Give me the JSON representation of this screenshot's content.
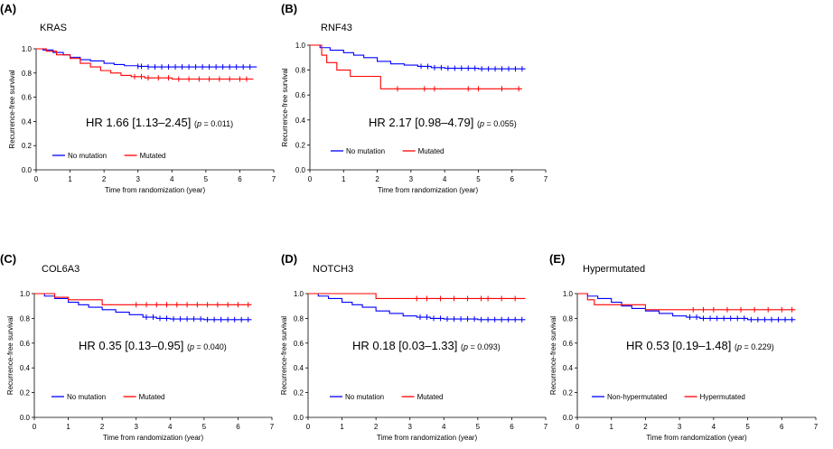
{
  "colors": {
    "series_a": "#0000ff",
    "series_b": "#ff0000"
  },
  "chart_data": [
    {
      "type": "line",
      "panel": "(A)",
      "title": "KRAS",
      "xlabel": "Time from randomization (year)",
      "ylabel": "Recurrence-free survival",
      "xlim": [
        0,
        7
      ],
      "ylim": [
        0,
        1.0
      ],
      "xticks": [
        "0",
        "1",
        "2",
        "3",
        "4",
        "5",
        "6",
        "7"
      ],
      "yticks": [
        "0.0",
        "0.2",
        "0.4",
        "0.6",
        "0.8",
        "1.0"
      ],
      "hr_text": "HR 1.66 [1.13–2.45]",
      "p_open": "(",
      "p_label": "p",
      "p_value": " = 0.011)",
      "legend_position": "bottom-left",
      "series": [
        {
          "name": "No mutation",
          "color": "#0000ff",
          "x": [
            0,
            0.2,
            0.5,
            0.8,
            1.0,
            1.3,
            1.6,
            2.0,
            2.3,
            2.6,
            3.0,
            3.3,
            4.0,
            5.0,
            6.5
          ],
          "y": [
            1.0,
            0.99,
            0.97,
            0.95,
            0.93,
            0.91,
            0.9,
            0.88,
            0.87,
            0.86,
            0.855,
            0.85,
            0.85,
            0.85,
            0.85
          ],
          "censor": [
            3.0,
            3.1,
            3.3,
            3.5,
            3.7,
            3.9,
            4.1,
            4.3,
            4.5,
            4.7,
            4.9,
            5.1,
            5.3,
            5.5,
            5.7,
            5.9,
            6.1,
            6.3
          ]
        },
        {
          "name": "Mutated",
          "color": "#ff0000",
          "x": [
            0,
            0.3,
            0.6,
            1.0,
            1.3,
            1.6,
            1.9,
            2.2,
            2.5,
            2.8,
            3.2,
            4.0,
            5.0,
            6.4
          ],
          "y": [
            1.0,
            0.98,
            0.95,
            0.92,
            0.88,
            0.85,
            0.82,
            0.8,
            0.78,
            0.77,
            0.76,
            0.75,
            0.75,
            0.75
          ],
          "censor": [
            2.9,
            3.1,
            3.3,
            3.6,
            3.9,
            4.2,
            4.5,
            4.8,
            5.1,
            5.4,
            5.7,
            6.0,
            6.2
          ]
        }
      ]
    },
    {
      "type": "line",
      "panel": "(B)",
      "title": "RNF43",
      "xlabel": "Time from randomization (year)",
      "ylabel": "Recurrence-free survival",
      "xlim": [
        0,
        7
      ],
      "ylim": [
        0,
        1.0
      ],
      "xticks": [
        "0",
        "1",
        "2",
        "3",
        "4",
        "5",
        "6",
        "7"
      ],
      "yticks": [
        "0.0",
        "0.2",
        "0.4",
        "0.6",
        "0.8",
        "1.0"
      ],
      "hr_text": "HR 2.17 [0.98–4.79]",
      "p_open": "(",
      "p_label": "p",
      "p_value": " = 0.055)",
      "legend_position": "bottom-left",
      "series": [
        {
          "name": "No mutation",
          "color": "#0000ff",
          "x": [
            0,
            0.3,
            0.6,
            1.0,
            1.3,
            1.6,
            2.0,
            2.4,
            2.8,
            3.2,
            3.6,
            4.0,
            5.0,
            6.4
          ],
          "y": [
            1.0,
            0.98,
            0.96,
            0.94,
            0.92,
            0.9,
            0.87,
            0.85,
            0.84,
            0.83,
            0.82,
            0.815,
            0.81,
            0.81
          ],
          "censor": [
            3.3,
            3.5,
            3.7,
            3.9,
            4.1,
            4.3,
            4.5,
            4.7,
            4.9,
            5.1,
            5.3,
            5.5,
            5.7,
            5.9,
            6.1,
            6.3
          ]
        },
        {
          "name": "Mutated",
          "color": "#ff0000",
          "x": [
            0,
            0.35,
            0.5,
            0.8,
            1.2,
            1.5,
            2.1,
            6.3
          ],
          "y": [
            1.0,
            0.92,
            0.86,
            0.8,
            0.75,
            0.75,
            0.65,
            0.65
          ],
          "censor": [
            2.6,
            3.4,
            3.7,
            4.7,
            5.0,
            5.7,
            6.2
          ]
        }
      ]
    },
    {
      "type": "line",
      "panel": "(C)",
      "title": "COL6A3",
      "xlabel": "Time from randomization (year)",
      "ylabel": "Recurrence-free survival",
      "xlim": [
        0,
        7
      ],
      "ylim": [
        0,
        1.0
      ],
      "xticks": [
        "0",
        "1",
        "2",
        "3",
        "4",
        "5",
        "6",
        "7"
      ],
      "yticks": [
        "0.0",
        "0.2",
        "0.4",
        "0.6",
        "0.8",
        "1.0"
      ],
      "hr_text": "HR 0.35 [0.13–0.95]",
      "p_open": "(",
      "p_label": "p",
      "p_value": " = 0.040)",
      "legend_position": "bottom-left",
      "series": [
        {
          "name": "No mutation",
          "color": "#0000ff",
          "x": [
            0,
            0.3,
            0.6,
            1.0,
            1.3,
            1.6,
            2.0,
            2.4,
            2.8,
            3.2,
            3.6,
            4.0,
            5.0,
            6.4
          ],
          "y": [
            1.0,
            0.98,
            0.96,
            0.93,
            0.91,
            0.89,
            0.87,
            0.85,
            0.83,
            0.81,
            0.8,
            0.795,
            0.79,
            0.79
          ],
          "censor": [
            3.3,
            3.5,
            3.7,
            3.9,
            4.1,
            4.3,
            4.5,
            4.7,
            4.9,
            5.1,
            5.3,
            5.5,
            5.7,
            5.9,
            6.1,
            6.3
          ]
        },
        {
          "name": "Mutated",
          "color": "#ff0000",
          "x": [
            0,
            0.6,
            1.0,
            1.9,
            2.0,
            6.4
          ],
          "y": [
            1.0,
            0.97,
            0.95,
            0.95,
            0.91,
            0.91
          ],
          "censor": [
            3.0,
            3.3,
            3.6,
            3.9,
            4.2,
            4.5,
            4.8,
            5.1,
            5.4,
            5.7,
            6.0,
            6.3
          ]
        }
      ]
    },
    {
      "type": "line",
      "panel": "(D)",
      "title": "NOTCH3",
      "xlabel": "Time from randomization (year)",
      "ylabel": "Recurrence-free survival",
      "xlim": [
        0,
        7
      ],
      "ylim": [
        0,
        1.0
      ],
      "xticks": [
        "0",
        "1",
        "2",
        "3",
        "4",
        "5",
        "6",
        "7"
      ],
      "yticks": [
        "0.0",
        "0.2",
        "0.4",
        "0.6",
        "0.8",
        "1.0"
      ],
      "hr_text": "HR 0.18 [0.03–1.33]",
      "p_open": "(",
      "p_label": "p",
      "p_value": " = 0.093)",
      "legend_position": "bottom-left",
      "series": [
        {
          "name": "No mutation",
          "color": "#0000ff",
          "x": [
            0,
            0.3,
            0.6,
            1.0,
            1.3,
            1.6,
            2.0,
            2.4,
            2.8,
            3.2,
            3.6,
            4.0,
            5.0,
            6.4
          ],
          "y": [
            1.0,
            0.98,
            0.96,
            0.93,
            0.91,
            0.89,
            0.86,
            0.84,
            0.82,
            0.81,
            0.8,
            0.795,
            0.79,
            0.79
          ],
          "censor": [
            3.3,
            3.5,
            3.7,
            3.9,
            4.1,
            4.3,
            4.5,
            4.7,
            4.9,
            5.1,
            5.3,
            5.5,
            5.7,
            5.9,
            6.1,
            6.3
          ]
        },
        {
          "name": "Mutated",
          "color": "#ff0000",
          "x": [
            0,
            2.0,
            2.0,
            6.4
          ],
          "y": [
            1.0,
            1.0,
            0.96,
            0.96
          ],
          "censor": [
            3.2,
            3.5,
            3.9,
            4.3,
            4.7,
            5.1,
            5.3,
            5.7,
            6.1
          ]
        }
      ]
    },
    {
      "type": "line",
      "panel": "(E)",
      "title": "Hypermutated",
      "xlabel": "Time from randomization (year)",
      "ylabel": "Recurrence-free survival",
      "xlim": [
        0,
        7
      ],
      "ylim": [
        0,
        1.0
      ],
      "xticks": [
        "0",
        "1",
        "2",
        "3",
        "4",
        "5",
        "6",
        "7"
      ],
      "yticks": [
        "0.0",
        "0.2",
        "0.4",
        "0.6",
        "0.8",
        "1.0"
      ],
      "hr_text": "HR 0.53 [0.19–1.48]",
      "p_open": "(",
      "p_label": "p",
      "p_value": " = 0.229)",
      "legend_position": "bottom-left",
      "series": [
        {
          "name": "Non-hypermutated",
          "color": "#0000ff",
          "x": [
            0,
            0.3,
            0.6,
            1.0,
            1.3,
            1.6,
            2.0,
            2.4,
            2.8,
            3.2,
            3.6,
            4.0,
            5.0,
            6.4
          ],
          "y": [
            1.0,
            0.98,
            0.96,
            0.93,
            0.9,
            0.88,
            0.86,
            0.84,
            0.82,
            0.81,
            0.8,
            0.8,
            0.79,
            0.79
          ],
          "censor": [
            3.3,
            3.5,
            3.7,
            3.9,
            4.1,
            4.3,
            4.5,
            4.7,
            4.9,
            5.1,
            5.3,
            5.5,
            5.7,
            5.9,
            6.1,
            6.3
          ]
        },
        {
          "name": "Hypermutated",
          "color": "#ff0000",
          "x": [
            0,
            0.3,
            0.5,
            2.0,
            2.0,
            6.4
          ],
          "y": [
            1.0,
            0.95,
            0.91,
            0.91,
            0.87,
            0.87
          ],
          "censor": [
            3.4,
            3.7,
            4.0,
            4.4,
            4.8,
            5.2,
            5.6,
            6.0,
            6.3
          ]
        }
      ]
    }
  ]
}
